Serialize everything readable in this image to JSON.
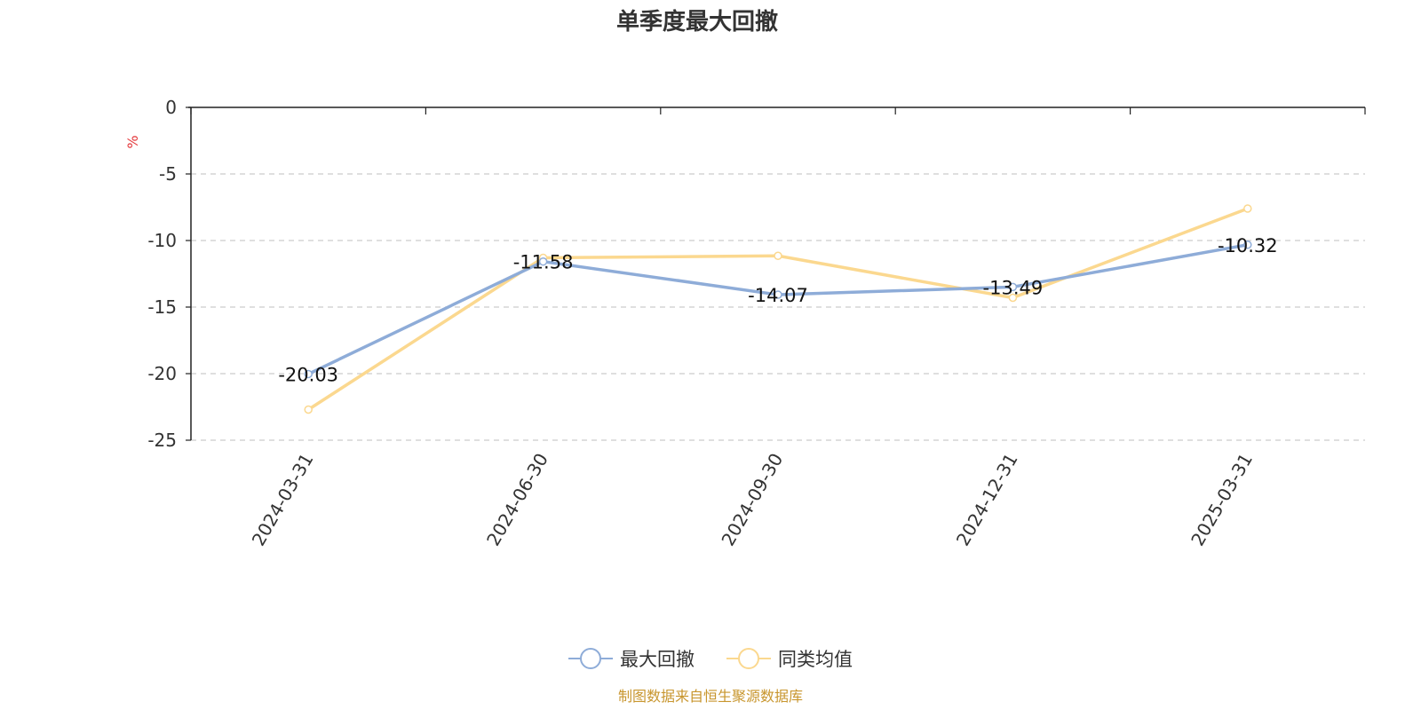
{
  "chart_data": {
    "type": "line",
    "title": "单季度最大回撤",
    "ylabel": "%",
    "xlabel": "",
    "categories": [
      "2024-03-31",
      "2024-06-30",
      "2024-09-30",
      "2024-12-31",
      "2025-03-31"
    ],
    "yticks": [
      "0",
      "-5",
      "-10",
      "-15",
      "-20",
      "-25"
    ],
    "ylim": [
      -25,
      0
    ],
    "grid": true,
    "legend_position": "bottom",
    "series": [
      {
        "name": "最大回撤",
        "values": [
          -20.03,
          -11.58,
          -14.07,
          -13.49,
          -10.32
        ],
        "labels": [
          "-20.03",
          "-11.58",
          "-14.07",
          "-13.49",
          "-10.32"
        ],
        "color": "#8eacd8"
      },
      {
        "name": "同类均值",
        "values": [
          -22.7,
          -11.3,
          -11.15,
          -14.3,
          -7.6
        ],
        "color": "#fbd88f"
      }
    ]
  },
  "source": "制图数据来自恒生聚源数据库"
}
